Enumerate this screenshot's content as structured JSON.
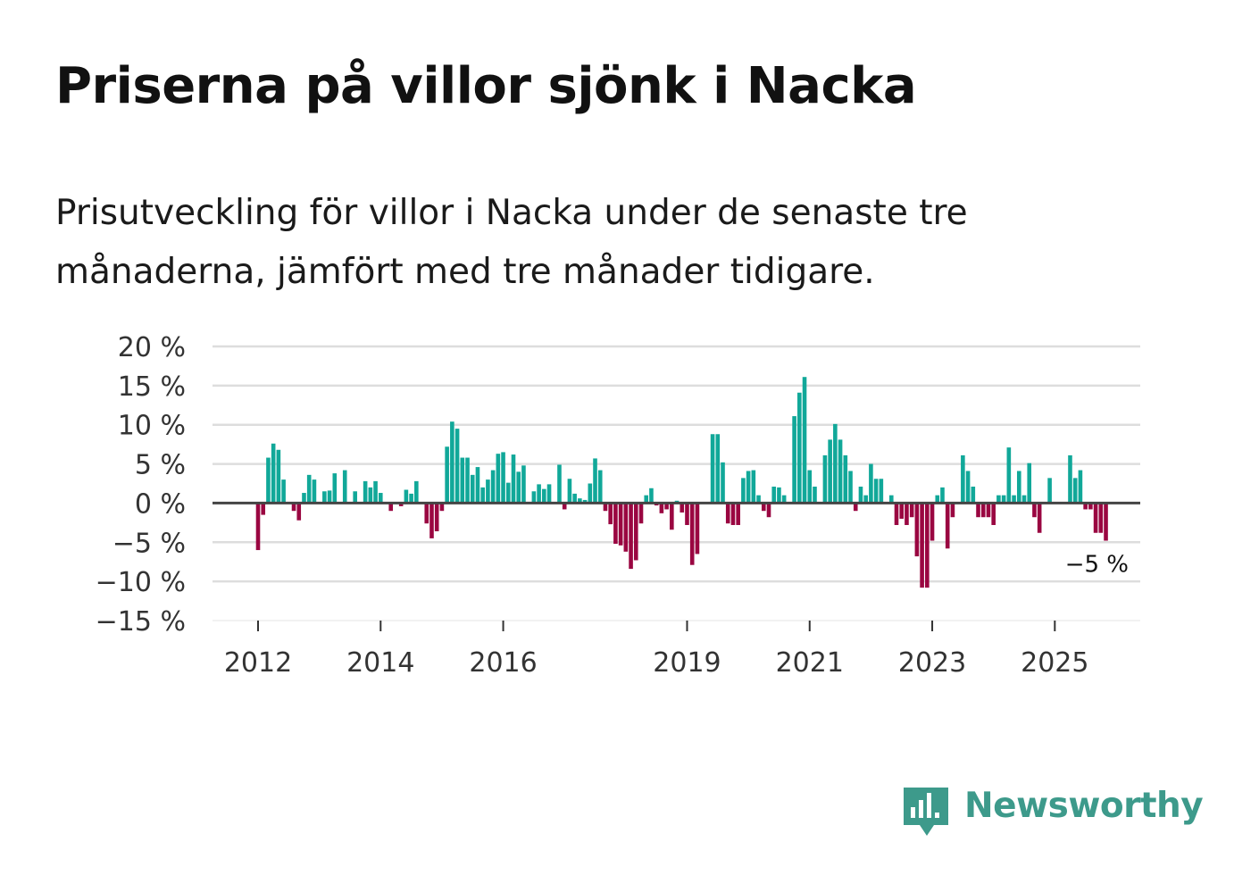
{
  "title": "Priserna på villor sjönk i Nacka",
  "subtitle": "Prisutveckling för villor i Nacka under de senaste tre månaderna, jämfört med tre månader tidigare.",
  "brand": {
    "name": "Newsworthy",
    "icon": "newsworthy-logo-icon",
    "color": "#3d9a8b"
  },
  "colors": {
    "positive": "#11a899",
    "negative": "#9a0641",
    "grid": "#dddddd",
    "zero_line": "#444444"
  },
  "chart_data": {
    "type": "bar",
    "title": "Priserna på villor sjönk i Nacka",
    "xlabel": "",
    "ylabel": "",
    "ylim": [
      -15,
      20
    ],
    "y_ticks": [
      20,
      15,
      10,
      5,
      0,
      -5,
      -10,
      -15
    ],
    "y_tick_labels": [
      "20 %",
      "15 %",
      "10 %",
      "5 %",
      "0 %",
      "−5 %",
      "−10 %",
      "−15 %"
    ],
    "x_ticks": [
      {
        "label": "2012",
        "index": 0
      },
      {
        "label": "2014",
        "index": 24
      },
      {
        "label": "2016",
        "index": 48
      },
      {
        "label": "2019",
        "index": 84
      },
      {
        "label": "2021",
        "index": 108
      },
      {
        "label": "2023",
        "index": 132
      },
      {
        "label": "2025",
        "index": 156
      }
    ],
    "start": "2012-01",
    "frequency": "monthly",
    "series": [
      {
        "name": "Prisutveckling",
        "values": [
          -6,
          -1.5,
          5.8,
          7.6,
          6.8,
          3,
          0,
          -1,
          -2.2,
          1.3,
          3.6,
          3,
          0,
          1.5,
          1.6,
          3.8,
          0,
          4.2,
          0,
          1.5,
          0,
          2.8,
          2,
          2.8,
          1.3,
          0,
          -1,
          0,
          -0.4,
          1.7,
          1.2,
          2.8,
          0,
          -2.6,
          -4.5,
          -3.6,
          -1,
          7.2,
          10.4,
          9.5,
          5.8,
          5.8,
          3.6,
          4.6,
          2,
          3,
          4.2,
          6.3,
          6.5,
          2.6,
          6.2,
          4,
          4.8,
          0,
          1.5,
          2.4,
          1.8,
          2.4,
          0,
          4.9,
          -0.8,
          3.1,
          1.2,
          0.6,
          0.4,
          2.5,
          5.7,
          4.2,
          -1,
          -2.7,
          -5.2,
          -5.4,
          -6.2,
          -8.4,
          -7.3,
          -2.6,
          1,
          1.9,
          -0.3,
          -1.3,
          -0.8,
          -3.4,
          0.3,
          -1.2,
          -2.8,
          -7.9,
          -6.5,
          0,
          0,
          8.8,
          8.8,
          5.2,
          -2.6,
          -2.8,
          -2.8,
          3.2,
          4.1,
          4.2,
          1,
          -1,
          -1.8,
          2.1,
          2,
          1,
          0,
          11.1,
          14.1,
          16.1,
          4.2,
          2.1,
          0,
          6.1,
          8.1,
          10.1,
          8.1,
          6.1,
          4.1,
          -1,
          2.1,
          1,
          5,
          3.1,
          3.1,
          0,
          1,
          -2.8,
          -2,
          -2.8,
          -1.8,
          -6.8,
          -10.8,
          -10.8,
          -4.8,
          1,
          2,
          -5.8,
          -1.8,
          0,
          6.1,
          4.1,
          2.1,
          -1.8,
          -1.8,
          -1.8,
          -2.8,
          1,
          1,
          7.1,
          1,
          4.1,
          1,
          5.1,
          -1.8,
          -3.8,
          0,
          3.2,
          0,
          0,
          0,
          6.1,
          3.2,
          4.2,
          -0.8,
          -0.8,
          -3.8,
          -3.8,
          -4.8
        ]
      }
    ],
    "annotations": [
      {
        "text": "−5 %",
        "target": "last"
      }
    ]
  }
}
